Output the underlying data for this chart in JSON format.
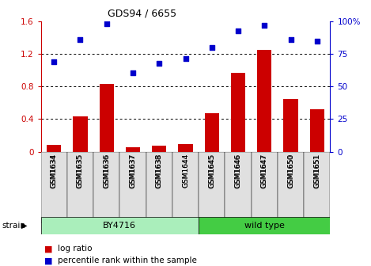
{
  "title": "GDS94 / 6655",
  "samples": [
    "GSM1634",
    "GSM1635",
    "GSM1636",
    "GSM1637",
    "GSM1638",
    "GSM1644",
    "GSM1645",
    "GSM1646",
    "GSM1647",
    "GSM1650",
    "GSM1651"
  ],
  "log_ratio": [
    0.08,
    0.43,
    0.83,
    0.05,
    0.07,
    0.09,
    0.47,
    0.97,
    1.25,
    0.65,
    0.52
  ],
  "percentile_rank": [
    1.1,
    1.38,
    1.57,
    0.97,
    1.08,
    1.14,
    1.28,
    1.48,
    1.55,
    1.38,
    1.36
  ],
  "bar_color": "#cc0000",
  "dot_color": "#0000cc",
  "group1_label": "BY4716",
  "group1_samples": [
    0,
    1,
    2,
    3,
    4,
    5
  ],
  "group2_label": "wild type",
  "group2_samples": [
    6,
    7,
    8,
    9,
    10
  ],
  "group1_color": "#aaeebb",
  "group2_color": "#44cc44",
  "ylim_left": [
    0,
    1.6
  ],
  "yticks_left": [
    0,
    0.4,
    0.8,
    1.2,
    1.6
  ],
  "ytick_labels_left": [
    "0",
    "0.4",
    "0.8",
    "1.2",
    "1.6"
  ],
  "ytick_labels_right": [
    "0",
    "25",
    "50",
    "75",
    "100%"
  ],
  "strain_label": "strain",
  "legend_bar": "log ratio",
  "legend_dot": "percentile rank within the sample",
  "background_color": "#ffffff",
  "left_tick_color": "#cc0000",
  "right_tick_color": "#0000cc",
  "dotted_grid_lines": [
    0.4,
    0.8,
    1.2
  ]
}
